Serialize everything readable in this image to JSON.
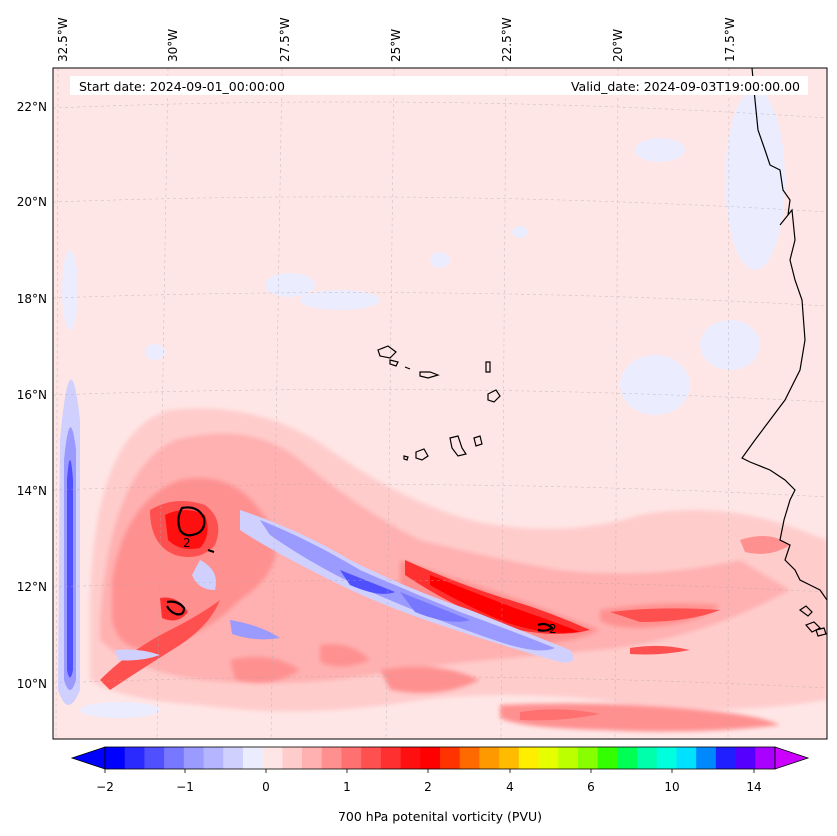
{
  "map": {
    "start_date": "Start date: 2024-09-01_00:00:00",
    "valid_date": "Valid_date: 2024-09-03T19:00:00.00",
    "lon_labels": [
      "32.5°W",
      "30°W",
      "27.5°W",
      "25°W",
      "22.5°W",
      "20°W",
      "17.5°W"
    ],
    "lat_labels": [
      "22°N",
      "20°N",
      "18°N",
      "16°N",
      "14°N",
      "12°N",
      "10°N"
    ],
    "contour_label": "2"
  },
  "colorbar": {
    "label": "700 hPa potenital vorticity (PVU)",
    "tick_labels": [
      "−2",
      "−1",
      "0",
      "1",
      "2",
      "4",
      "6",
      "10",
      "14"
    ],
    "colors": [
      "#0000ff",
      "#2a2aff",
      "#5050ff",
      "#7878ff",
      "#9a9aff",
      "#b4b4ff",
      "#d0d0ff",
      "#ececff",
      "#ffe6e6",
      "#ffcccc",
      "#ffb0b0",
      "#ff9090",
      "#ff7070",
      "#ff5050",
      "#ff3030",
      "#ff1010",
      "#ff0000",
      "#ff3300",
      "#ff6a00",
      "#ff9900",
      "#ffbb00",
      "#ffee00",
      "#e6ff00",
      "#bbff00",
      "#88ff00",
      "#33ff00",
      "#00ff55",
      "#00ffaa",
      "#00ffdd",
      "#00e0ff",
      "#0088ff",
      "#1f1fff",
      "#5500ff",
      "#aa00ff"
    ],
    "under_color": "#0000ff",
    "over_color": "#cc00ff"
  }
}
